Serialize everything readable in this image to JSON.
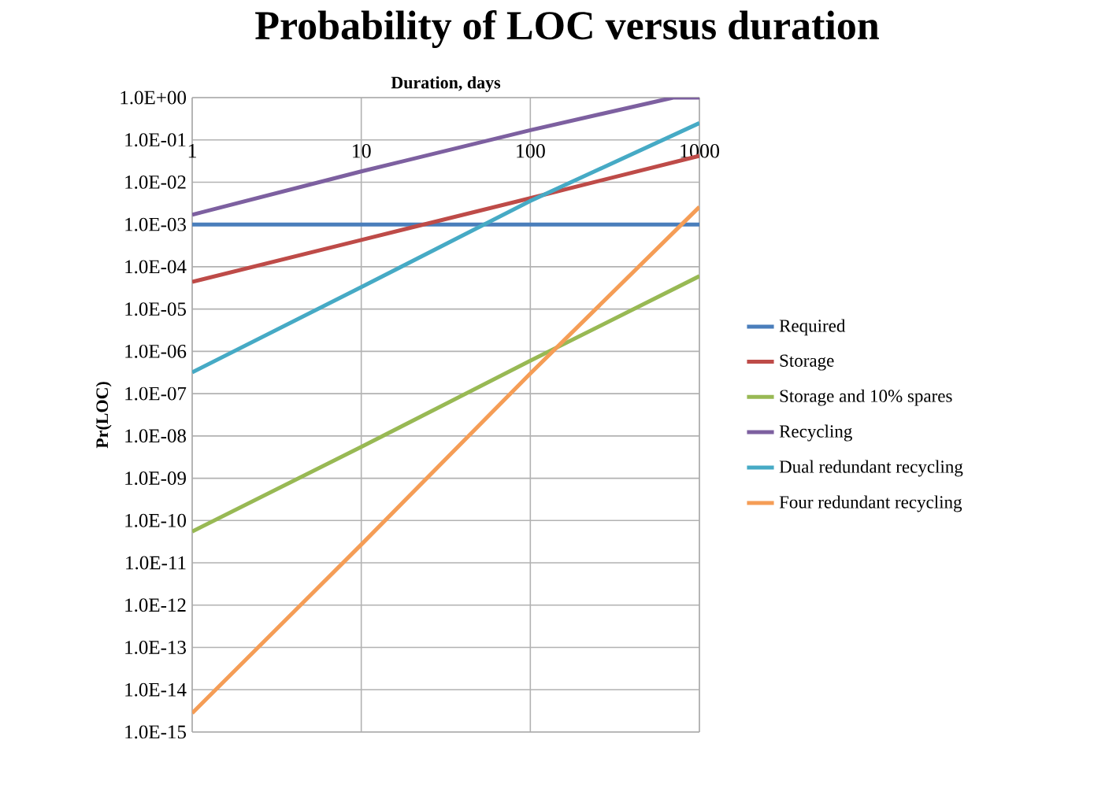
{
  "chart_data": {
    "type": "line",
    "title": "Probability of LOC versus duration",
    "xlabel": "Duration, days",
    "ylabel": "Pr(LOC)",
    "log": "xy",
    "x": [
      1,
      10,
      100,
      1000
    ],
    "series": [
      {
        "name": "Required",
        "color": "#4a7ebb",
        "values": [
          0.001,
          0.001,
          0.001,
          0.001
        ]
      },
      {
        "name": "Storage",
        "color": "#be4b48",
        "values": [
          4.4e-05,
          0.00043,
          0.0042,
          0.042
        ]
      },
      {
        "name": "Storage and 10% spares",
        "color": "#98b954",
        "values": [
          5.5e-11,
          5.5e-09,
          6e-07,
          6e-05
        ]
      },
      {
        "name": "Recycling",
        "color": "#7d60a0",
        "x": [
          1,
          10,
          100,
          700,
          1000
        ],
        "values": [
          0.0017,
          0.018,
          0.17,
          1,
          1
        ]
      },
      {
        "name": "Dual redundant recycling",
        "color": "#46aac5",
        "values": [
          3.2e-07,
          3.3e-05,
          0.0036,
          0.25
        ]
      },
      {
        "name": "Four redundant recycling",
        "color": "#f59d56",
        "values": [
          2.8e-15,
          2.7e-11,
          3e-07,
          0.0026
        ]
      }
    ],
    "xlim": [
      1,
      1000
    ],
    "ylim": [
      1e-15,
      1
    ],
    "xticks": [
      1,
      10,
      100,
      1000
    ],
    "yticks": [
      {
        "value": 1,
        "label": "1.0E+00"
      },
      {
        "value": 0.1,
        "label": "1.0E-01"
      },
      {
        "value": 0.01,
        "label": "1.0E-02"
      },
      {
        "value": 0.001,
        "label": "1.0E-03"
      },
      {
        "value": 0.0001,
        "label": "1.0E-04"
      },
      {
        "value": 1e-05,
        "label": "1.0E-05"
      },
      {
        "value": 1e-06,
        "label": "1.0E-06"
      },
      {
        "value": 1e-07,
        "label": "1.0E-07"
      },
      {
        "value": 1e-08,
        "label": "1.0E-08"
      },
      {
        "value": 1e-09,
        "label": "1.0E-09"
      },
      {
        "value": 1e-10,
        "label": "1.0E-10"
      },
      {
        "value": 1e-11,
        "label": "1.0E-11"
      },
      {
        "value": 1e-12,
        "label": "1.0E-12"
      },
      {
        "value": 1e-13,
        "label": "1.0E-13"
      },
      {
        "value": 1e-14,
        "label": "1.0E-14"
      },
      {
        "value": 1e-15,
        "label": "1.0E-15"
      }
    ],
    "grid": true,
    "legend": "right",
    "marker": "none",
    "line_style": "solid"
  }
}
